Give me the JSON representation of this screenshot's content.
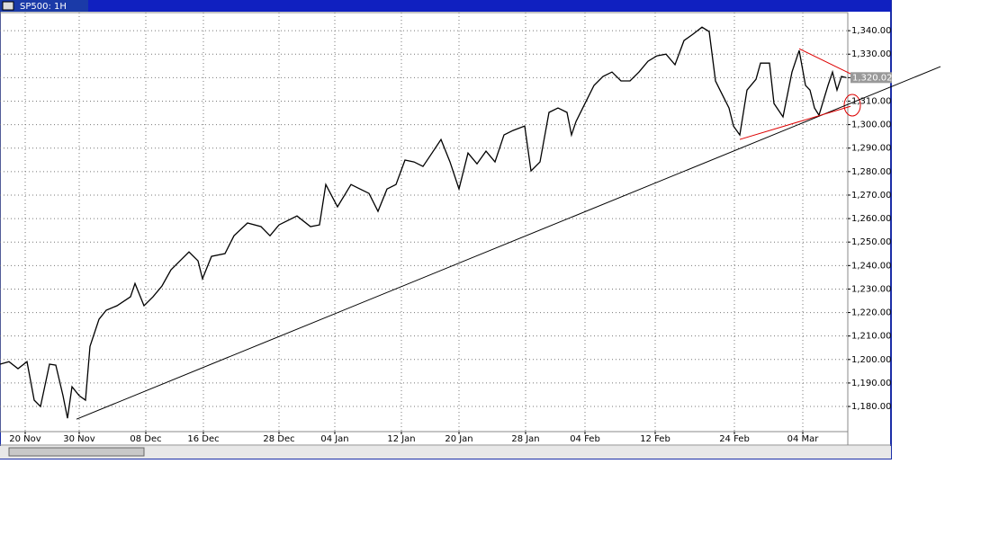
{
  "chart_data": {
    "type": "line",
    "title": "SP500: 1H",
    "x": [
      0,
      5,
      10,
      15,
      19,
      22.5,
      27.5,
      31,
      35,
      37.5,
      40,
      44,
      47.5,
      50,
      55,
      59,
      65,
      72.5,
      75,
      80,
      85,
      90,
      95,
      100,
      105,
      110,
      112.5,
      117.5,
      125,
      130,
      137.5,
      145,
      150,
      155,
      165,
      172.5,
      177.5,
      181,
      187.5,
      195,
      200,
      205,
      210,
      215,
      220,
      225,
      230,
      235,
      240,
      245,
      250,
      255,
      260,
      265,
      270,
      275,
      280,
      285,
      291.5,
      295,
      300,
      305,
      310,
      315,
      317.5,
      320,
      325,
      330,
      335,
      340,
      345,
      350,
      355,
      360,
      365,
      370,
      375,
      380,
      385,
      390,
      394,
      397.5,
      400,
      405,
      407.5,
      411,
      415,
      420,
      422.5,
      427.5,
      430,
      435,
      440,
      444,
      447.5,
      450,
      452.5,
      455,
      460,
      462.5,
      465,
      467.5,
      470
    ],
    "series": [
      {
        "color": "#000000",
        "values": [
          1198.0,
          1199.1,
          1196.1,
          1199.1,
          1182.7,
          1180.0,
          1198.0,
          1197.6,
          1184.6,
          1175.0,
          1188.4,
          1184.6,
          1182.7,
          1205.6,
          1217.1,
          1221.0,
          1222.9,
          1226.7,
          1232.4,
          1222.9,
          1226.7,
          1231.3,
          1238.2,
          1242.0,
          1245.8,
          1242.0,
          1234.4,
          1243.9,
          1245.1,
          1252.7,
          1258.1,
          1256.6,
          1252.7,
          1257.3,
          1261.1,
          1256.6,
          1257.3,
          1274.5,
          1265.0,
          1274.5,
          1272.6,
          1270.7,
          1263.1,
          1272.6,
          1274.5,
          1284.9,
          1284.1,
          1282.2,
          1287.9,
          1293.7,
          1284.1,
          1272.6,
          1287.9,
          1283.3,
          1288.7,
          1284.1,
          1295.6,
          1297.5,
          1299.4,
          1280.3,
          1284.1,
          1305.2,
          1307.1,
          1305.2,
          1295.6,
          1301.3,
          1309.0,
          1316.7,
          1320.5,
          1322.4,
          1318.6,
          1318.6,
          1322.4,
          1327.0,
          1329.3,
          1330.0,
          1325.5,
          1335.8,
          1338.5,
          1341.5,
          1339.6,
          1318.6,
          1314.7,
          1307.1,
          1299.4,
          1295.6,
          1314.7,
          1319.3,
          1326.2,
          1326.2,
          1309.0,
          1303.3,
          1322.4,
          1331.6,
          1316.7,
          1314.7,
          1307.1,
          1304.0,
          1316.7,
          1322.4,
          1314.7,
          1320.5,
          1320.02
        ]
      }
    ],
    "last_price": {
      "value": 1320.02,
      "label": "1,320.02"
    },
    "trendlines": [
      {
        "color": "#000000",
        "x": [
          42.5,
          522.5
        ],
        "values": [
          1174.6,
          1324.7
        ]
      },
      {
        "color": "#dd0000",
        "x": [
          411,
          472.5
        ],
        "values": [
          1293.7,
          1307.8
        ]
      },
      {
        "color": "#dd0000",
        "x": [
          444,
          481
        ],
        "values": [
          1332.3,
          1318.5
        ]
      }
    ],
    "xlim": [
      0,
      471
    ],
    "ylim": [
      1169.3,
      1347.7
    ],
    "xticks": [
      {
        "value": 14,
        "label": "20 Nov"
      },
      {
        "value": 44,
        "label": "30 Nov"
      },
      {
        "value": 81,
        "label": "08 Dec"
      },
      {
        "value": 113,
        "label": "16 Dec"
      },
      {
        "value": 155,
        "label": "28 Dec"
      },
      {
        "value": 186,
        "label": "04 Jan"
      },
      {
        "value": 223,
        "label": "12 Jan"
      },
      {
        "value": 255,
        "label": "20 Jan"
      },
      {
        "value": 292,
        "label": "28 Jan"
      },
      {
        "value": 325,
        "label": "04 Feb"
      },
      {
        "value": 364,
        "label": "12 Feb"
      },
      {
        "value": 408,
        "label": "24 Feb"
      },
      {
        "value": 446,
        "label": "04 Mar"
      }
    ],
    "yticks": [
      {
        "value": 1180,
        "label": "1,180.00"
      },
      {
        "value": 1190,
        "label": "1,190.00"
      },
      {
        "value": 1200,
        "label": "1,200.00"
      },
      {
        "value": 1210,
        "label": "1,210.00"
      },
      {
        "value": 1220,
        "label": "1,220.00"
      },
      {
        "value": 1230,
        "label": "1,230.00"
      },
      {
        "value": 1240,
        "label": "1,240.00"
      },
      {
        "value": 1250,
        "label": "1,250.00"
      },
      {
        "value": 1260,
        "label": "1,260.00"
      },
      {
        "value": 1270,
        "label": "1,270.00"
      },
      {
        "value": 1280,
        "label": "1,280.00"
      },
      {
        "value": 1290,
        "label": "1,290.00"
      },
      {
        "value": 1300,
        "label": "1,300.00"
      },
      {
        "value": 1310,
        "label": "1,310.00"
      },
      {
        "value": 1320,
        "label": "1,320.00"
      },
      {
        "value": 1330,
        "label": "1,330.00"
      },
      {
        "value": 1340,
        "label": "1,340.00"
      }
    ],
    "grid": true
  }
}
